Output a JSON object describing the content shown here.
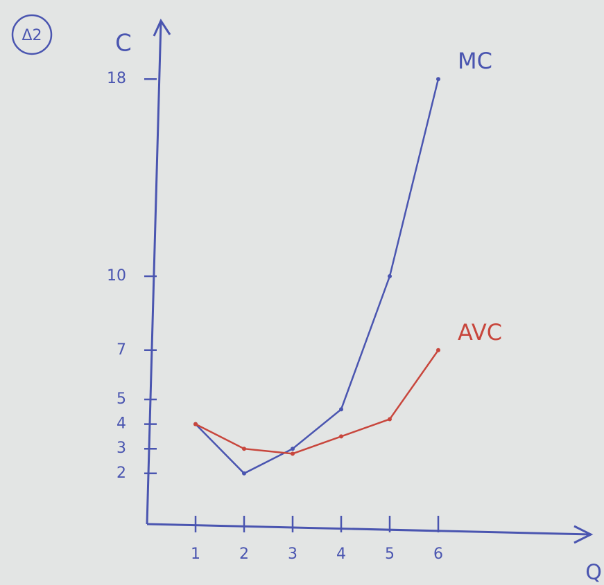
{
  "chart_data": {
    "type": "line",
    "title": "Δ2",
    "x_label": "Q",
    "y_label": "C",
    "x": [
      1,
      2,
      3,
      4,
      5,
      6
    ],
    "series": [
      {
        "name": "MC",
        "color": "#4a55b0",
        "values": [
          4,
          2,
          3,
          4.6,
          10,
          18
        ]
      },
      {
        "name": "AVC",
        "color": "#c8463c",
        "values": [
          4,
          3,
          2.8,
          3.5,
          4.2,
          7
        ]
      }
    ],
    "xlim": [
      0,
      9
    ],
    "ylim": [
      0,
      20
    ],
    "xticks": [
      1,
      2,
      3,
      4,
      5,
      6
    ],
    "yticks": [
      2,
      3,
      4,
      5,
      7,
      10,
      18
    ],
    "grid": false
  }
}
